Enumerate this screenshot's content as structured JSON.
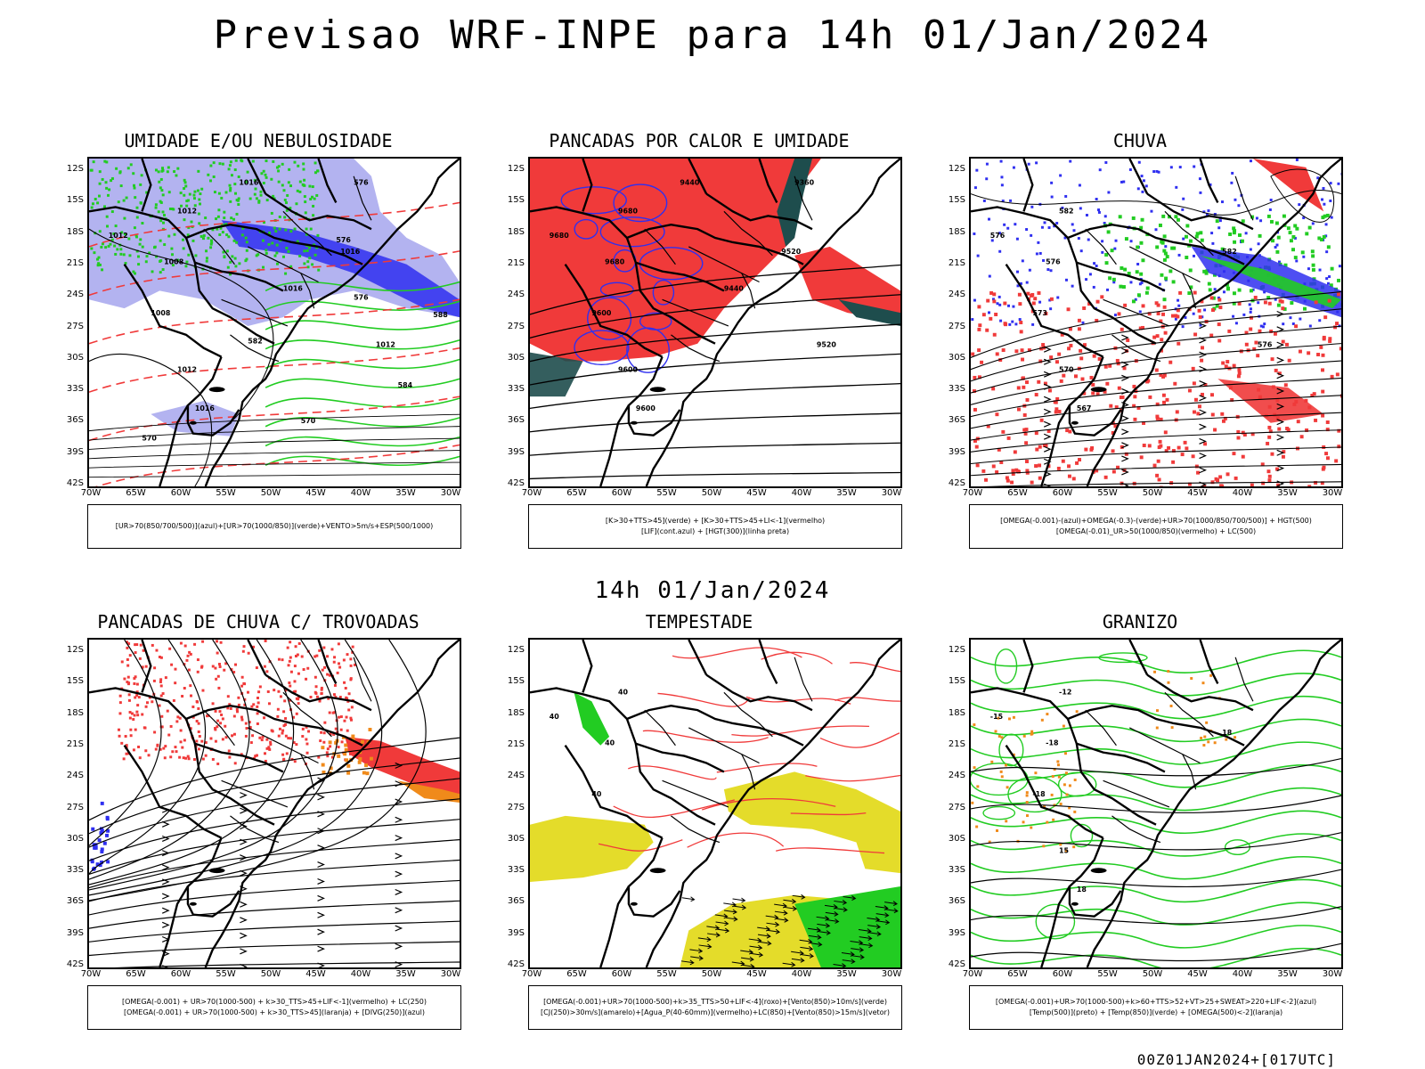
{
  "header": {
    "title": "Previsao WRF-INPE  para 14h 01/Jan/2024",
    "subtitle": "14h 01/Jan/2024",
    "footer": "00Z01JAN2024+[017UTC]"
  },
  "axes": {
    "lat_ticks": [
      "12S",
      "15S",
      "18S",
      "21S",
      "24S",
      "27S",
      "30S",
      "33S",
      "36S",
      "39S",
      "42S"
    ],
    "lon_ticks": [
      "70W",
      "65W",
      "60W",
      "55W",
      "50W",
      "45W",
      "40W",
      "35W",
      "30W"
    ]
  },
  "colors": {
    "blue_light": "#b3b3f0",
    "blue": "#2f2ff0",
    "green": "#22cc22",
    "red": "#f03a3a",
    "dark_teal": "#1e4d4d",
    "yellow": "#e4dc2a",
    "orange": "#f08a1a",
    "black": "#000000"
  },
  "panels": [
    {
      "id": "umidade",
      "title": "UMIDADE E/OU NEBULOSIDADE",
      "legend": [
        "[UR>70(850/700/500)](azul)+[UR>70(1000/850)](verde)+VENTO>5m/s+ESP(500/1000)"
      ],
      "contour_labels": [
        "1012",
        "1012",
        "1008",
        "1008",
        "1012",
        "1016",
        "1016",
        "1012",
        "1016",
        "1016",
        "576",
        "576",
        "570",
        "584",
        "570",
        "582",
        "576",
        "588"
      ]
    },
    {
      "id": "pancadas-calor",
      "title": "PANCADAS POR CALOR E UMIDADE",
      "legend": [
        "[K>30+TTS>45](verde) + [K>30+TTS>45+LI<-1](vermelho)",
        "[LIF](cont.azul) + [HGT(300)](linha preta)"
      ],
      "contour_labels": [
        "9680",
        "9680",
        "9680",
        "9600",
        "9600",
        "9600",
        "9520",
        "9520",
        "9440",
        "9440",
        "9360"
      ]
    },
    {
      "id": "chuva",
      "title": "CHUVA",
      "legend": [
        "[OMEGA(-0.001)-(azul)+OMEGA(-0.3)-(verde)+UR>70(1000/850/700/500)] + HGT(500)",
        "[OMEGA(-0.01)_UR>50(1000/850)(vermelho) + LC(500)"
      ],
      "contour_labels": [
        "582",
        "576",
        "576",
        "573",
        "570",
        "567",
        "582",
        "576"
      ]
    },
    {
      "id": "pancadas-trovoadas",
      "title": "PANCADAS DE CHUVA C/ TROVOADAS",
      "legend": [
        "[OMEGA(-0.001) + UR>70(1000-500) + k>30_TTS>45+LIF<-1](vermelho) + LC(250)",
        "[OMEGA(-0.001) + UR>70(1000-500) + k>30_TTS>45](laranja) + [DIVG(250)](azul)"
      ],
      "contour_labels": []
    },
    {
      "id": "tempestade",
      "title": "TEMPESTADE",
      "legend": [
        "[OMEGA(-0.001)+UR>70(1000-500)+k>35_TTS>50+LIF<-4](roxo)+[Vento(850)>10m/s](verde)",
        "[CJ(250)>30m/s](amarelo)+[Agua_P(40-60mm)](vermelho)+LC(850)+[Vento(850)>15m/s](vetor)"
      ],
      "contour_labels": [
        "40",
        "40",
        "40",
        "40"
      ]
    },
    {
      "id": "granizo",
      "title": "GRANIZO",
      "legend": [
        "[OMEGA(-0.001)+UR>70(1000-500)+k>60+TTS>52+VT>25+SWEAT>220+LIF<-2](azul)",
        "[Temp(500)](preto) + [Temp(850)](verde) + [OMEGA(500)<-2](laranja)"
      ],
      "contour_labels": [
        "-12",
        "-15",
        "-18",
        "-18",
        "15",
        "18",
        "18"
      ]
    }
  ]
}
